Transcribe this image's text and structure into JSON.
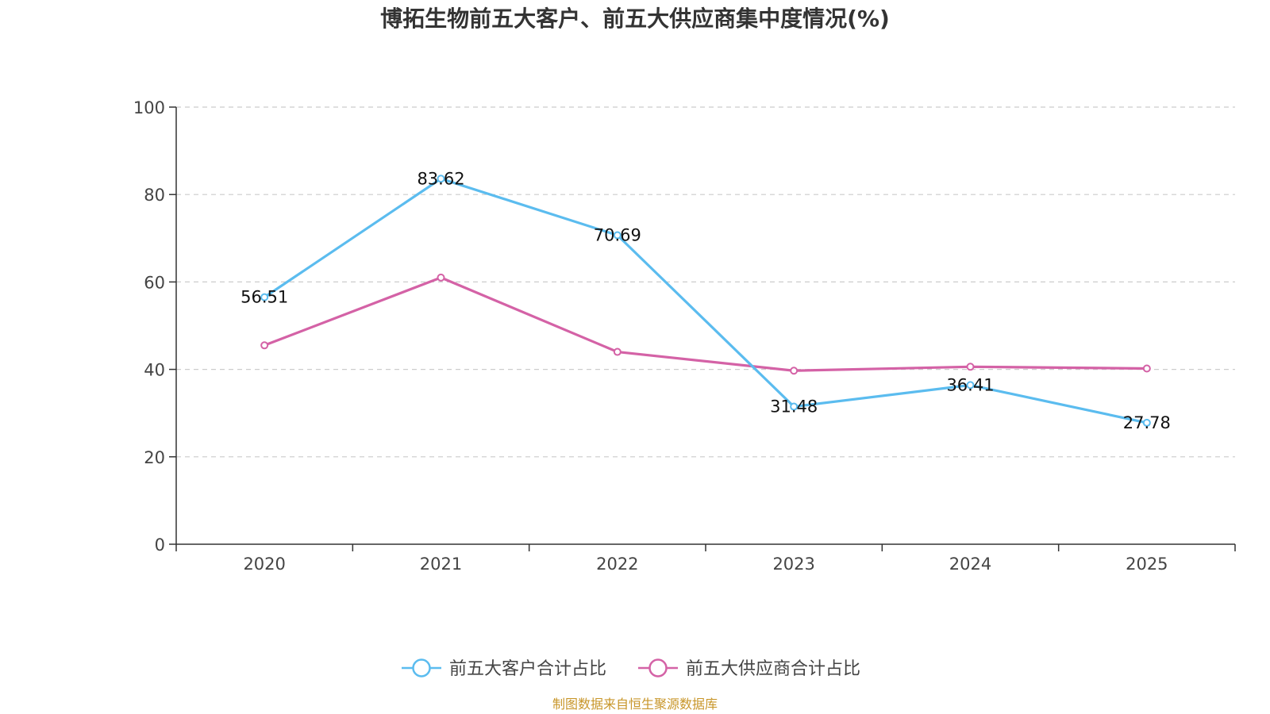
{
  "chart_data": {
    "type": "line",
    "title": "博拓生物前五大客户、前五大供应商集中度情况(%)",
    "categories": [
      "2020",
      "2021",
      "2022",
      "2023",
      "2024",
      "2025"
    ],
    "ylim": [
      0,
      100
    ],
    "yticks": [
      0,
      20,
      40,
      60,
      80,
      100
    ],
    "grid": true,
    "legend_position": "bottom-center",
    "series": [
      {
        "name": "前五大客户合计占比",
        "color": "#5bbcef",
        "values": [
          56.51,
          83.62,
          70.69,
          31.48,
          36.41,
          27.78
        ],
        "labels": [
          "56.51",
          "83.62",
          "70.69",
          "31.48",
          "36.41",
          "27.78"
        ],
        "show_labels": true
      },
      {
        "name": "前五大供应商合计占比",
        "color": "#d462a6",
        "values": [
          45.5,
          61.0,
          44.0,
          39.7,
          40.6,
          40.2
        ],
        "show_labels": false
      }
    ]
  },
  "source": {
    "text": "制图数据来自恒生聚源数据库",
    "color": "#c8962a"
  }
}
